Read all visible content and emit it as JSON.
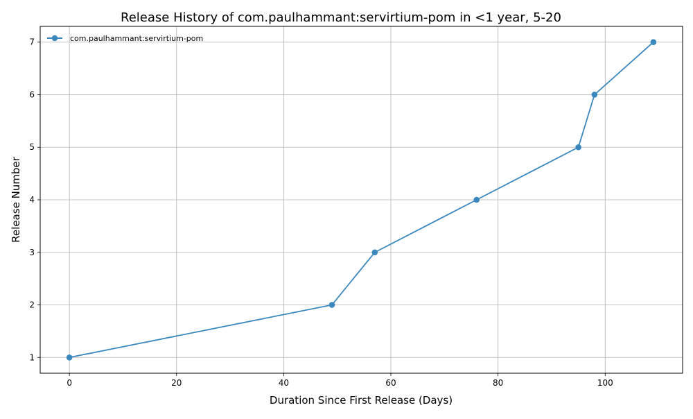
{
  "chart_data": {
    "type": "line",
    "title": "Release History of com.paulhammant:servirtium-pom in <1 year, 5-20",
    "xlabel": "Duration Since First Release (Days)",
    "ylabel": "Release Number",
    "xlim": [
      -5.45,
      114.45
    ],
    "ylim": [
      0.7,
      7.3
    ],
    "x_ticks": [
      0,
      20,
      40,
      60,
      80,
      100
    ],
    "y_ticks": [
      1,
      2,
      3,
      4,
      5,
      6,
      7
    ],
    "grid": true,
    "legend_position": "top-left",
    "series": [
      {
        "name": "com.paulhammant:servirtium-pom",
        "color": "#3a87be",
        "marker": "circle",
        "x": [
          0,
          49,
          57,
          76,
          95,
          98,
          109
        ],
        "y": [
          1,
          2,
          3,
          4,
          5,
          6,
          7
        ]
      }
    ]
  }
}
